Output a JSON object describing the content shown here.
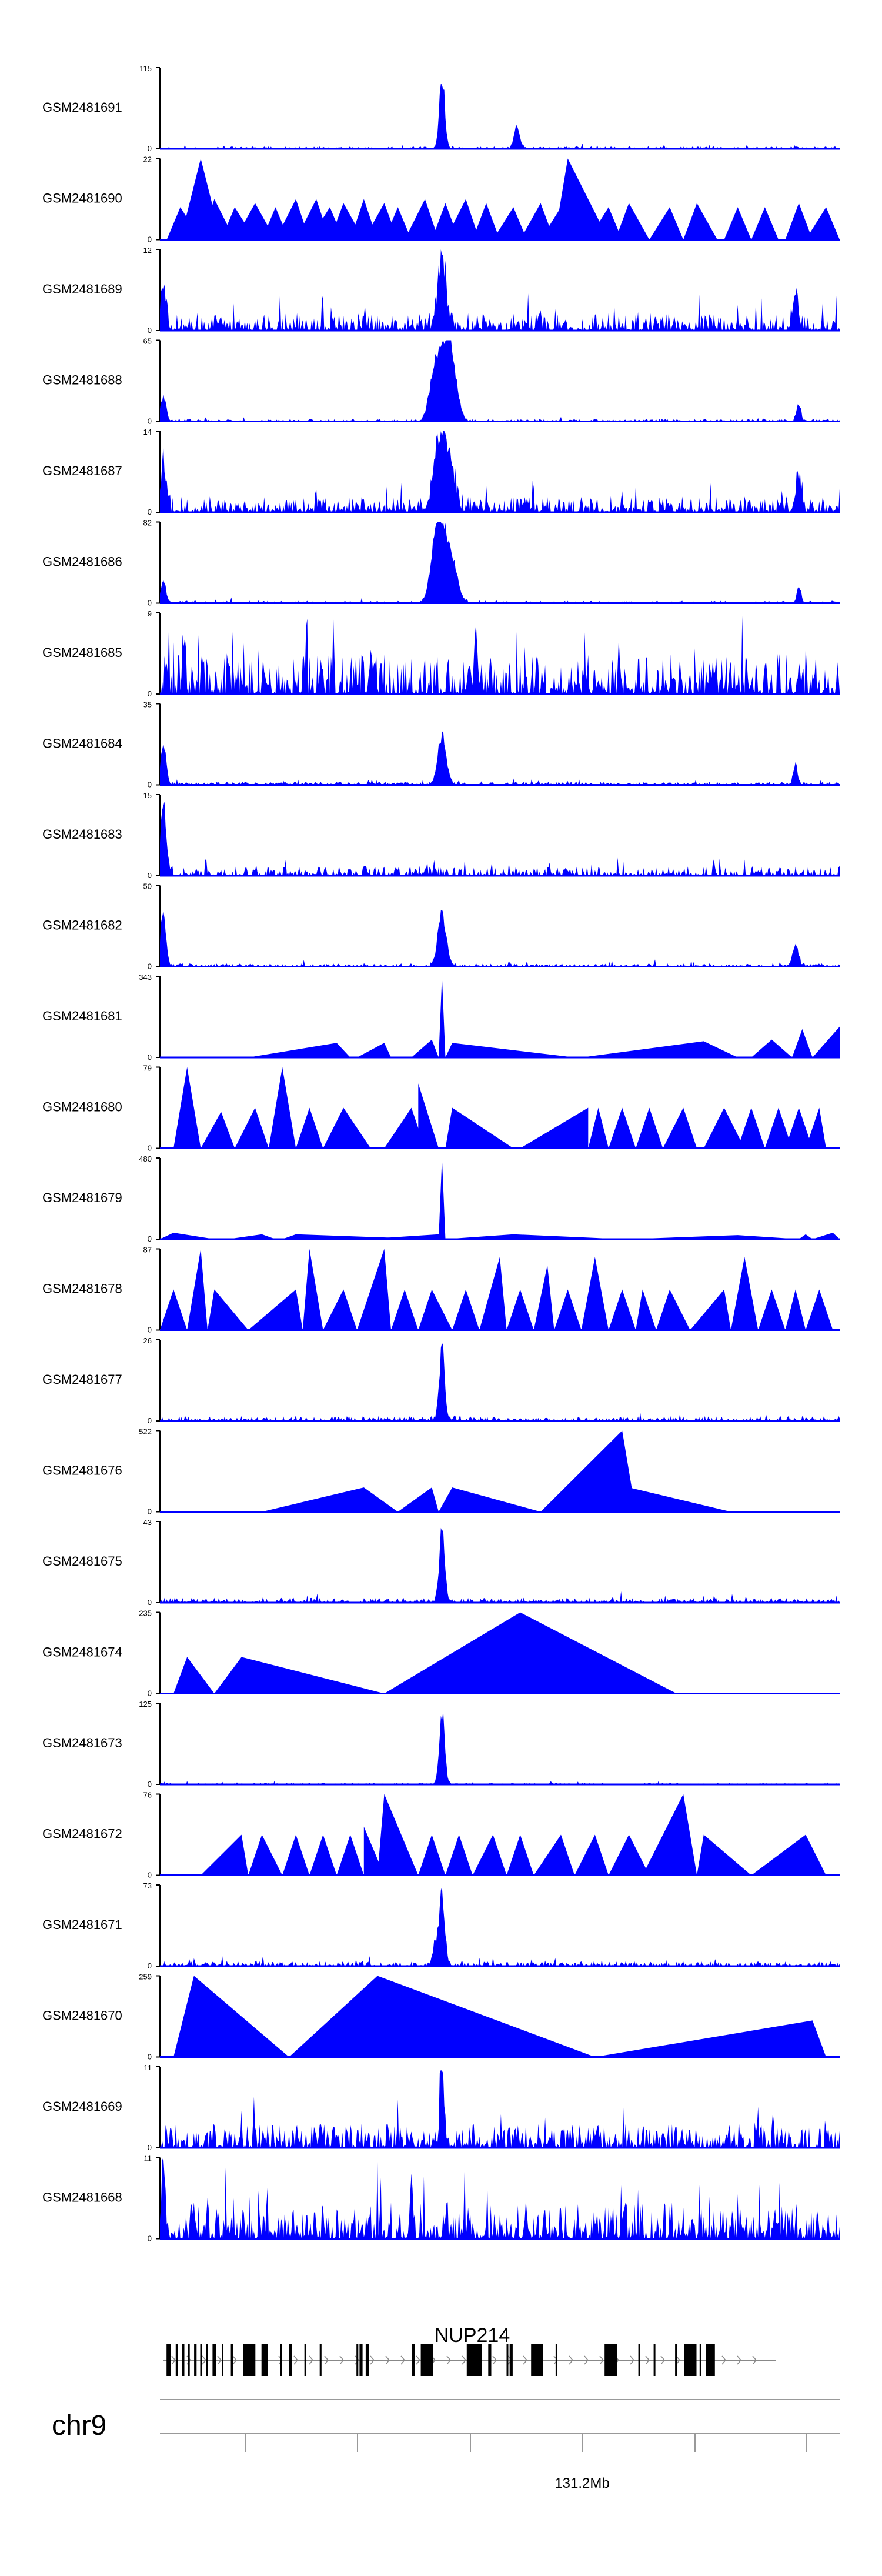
{
  "chromosome_label": "chr9",
  "gene_label": "NUP214",
  "genome_axis": {
    "tick_count": 6,
    "labeled_tick": "131.2Mb"
  },
  "colors": {
    "signal": "#0000ff",
    "axis": "#000000",
    "gene": "#000000"
  },
  "chart_data": {
    "type": "area",
    "title": "",
    "x_axis_label": "131.2Mb",
    "tracks": [
      {
        "name": "GSM2481691",
        "ymax": 115,
        "style": "dense",
        "noise": 0.03,
        "seed": 11,
        "peaks": [
          [
            0.415,
            1.0,
            0.004
          ],
          [
            0.525,
            0.32,
            0.004
          ]
        ]
      },
      {
        "name": "GSM2481690",
        "ymax": 22,
        "style": "sparse",
        "tris": [
          [
            0.01,
            0.06,
            0.03,
            0.4
          ],
          [
            0.03,
            0.09,
            0.06,
            1.0
          ],
          [
            0.06,
            0.11,
            0.08,
            0.5
          ],
          [
            0.09,
            0.14,
            0.11,
            0.4
          ],
          [
            0.11,
            0.17,
            0.14,
            0.45
          ],
          [
            0.15,
            0.19,
            0.17,
            0.4
          ],
          [
            0.17,
            0.22,
            0.2,
            0.5
          ],
          [
            0.2,
            0.25,
            0.23,
            0.5
          ],
          [
            0.22,
            0.27,
            0.25,
            0.4
          ],
          [
            0.25,
            0.3,
            0.27,
            0.45
          ],
          [
            0.28,
            0.32,
            0.3,
            0.5
          ],
          [
            0.3,
            0.35,
            0.33,
            0.45
          ],
          [
            0.33,
            0.37,
            0.35,
            0.4
          ],
          [
            0.36,
            0.41,
            0.39,
            0.5
          ],
          [
            0.4,
            0.44,
            0.42,
            0.45
          ],
          [
            0.42,
            0.47,
            0.45,
            0.5
          ],
          [
            0.46,
            0.5,
            0.48,
            0.45
          ],
          [
            0.49,
            0.54,
            0.52,
            0.4
          ],
          [
            0.53,
            0.58,
            0.56,
            0.45
          ],
          [
            0.56,
            0.62,
            0.59,
            0.4
          ],
          [
            0.58,
            0.66,
            0.6,
            1.0
          ],
          [
            0.63,
            0.68,
            0.66,
            0.4
          ],
          [
            0.67,
            0.72,
            0.69,
            0.45
          ],
          [
            0.72,
            0.77,
            0.75,
            0.4
          ],
          [
            0.77,
            0.82,
            0.79,
            0.45
          ],
          [
            0.83,
            0.87,
            0.85,
            0.4
          ],
          [
            0.87,
            0.91,
            0.89,
            0.4
          ],
          [
            0.92,
            0.96,
            0.94,
            0.45
          ],
          [
            0.95,
            1.0,
            0.98,
            0.4
          ]
        ]
      },
      {
        "name": "GSM2481689",
        "ymax": 12,
        "style": "dense",
        "noise": 0.22,
        "seed": 23,
        "peaks": [
          [
            0.415,
            1.0,
            0.006
          ],
          [
            0.005,
            0.6,
            0.004
          ],
          [
            0.935,
            0.5,
            0.004
          ]
        ]
      },
      {
        "name": "GSM2481688",
        "ymax": 65,
        "style": "dense",
        "noise": 0.03,
        "seed": 31,
        "peaks": [
          [
            0.405,
            0.7,
            0.008
          ],
          [
            0.42,
            0.85,
            0.008
          ],
          [
            0.43,
            0.6,
            0.008
          ],
          [
            0.005,
            0.35,
            0.004
          ],
          [
            0.94,
            0.25,
            0.003
          ]
        ]
      },
      {
        "name": "GSM2481687",
        "ymax": 14,
        "style": "dense",
        "noise": 0.2,
        "seed": 41,
        "peaks": [
          [
            0.41,
            0.85,
            0.008
          ],
          [
            0.425,
            0.7,
            0.008
          ],
          [
            0.005,
            0.6,
            0.004
          ],
          [
            0.94,
            0.45,
            0.004
          ]
        ]
      },
      {
        "name": "GSM2481686",
        "ymax": 82,
        "style": "dense",
        "noise": 0.03,
        "seed": 53,
        "peaks": [
          [
            0.405,
            0.65,
            0.008
          ],
          [
            0.415,
            0.8,
            0.008
          ],
          [
            0.43,
            0.55,
            0.008
          ],
          [
            0.005,
            0.3,
            0.004
          ],
          [
            0.94,
            0.25,
            0.003
          ]
        ]
      },
      {
        "name": "GSM2481685",
        "ymax": 9,
        "style": "dense",
        "noise": 0.5,
        "seed": 67,
        "peaks": [
          [
            0.465,
            0.95,
            0.002
          ],
          [
            0.035,
            0.6,
            0.002
          ]
        ]
      },
      {
        "name": "GSM2481684",
        "ymax": 35,
        "style": "dense",
        "noise": 0.04,
        "seed": 71,
        "peaks": [
          [
            0.415,
            0.7,
            0.006
          ],
          [
            0.005,
            0.55,
            0.004
          ],
          [
            0.935,
            0.3,
            0.003
          ]
        ]
      },
      {
        "name": "GSM2481683",
        "ymax": 15,
        "style": "dense",
        "noise": 0.12,
        "seed": 83,
        "peaks": [
          [
            0.005,
            0.95,
            0.004
          ]
        ]
      },
      {
        "name": "GSM2481682",
        "ymax": 50,
        "style": "dense",
        "noise": 0.04,
        "seed": 97,
        "peaks": [
          [
            0.415,
            0.75,
            0.006
          ],
          [
            0.005,
            0.8,
            0.004
          ],
          [
            0.935,
            0.3,
            0.004
          ]
        ]
      },
      {
        "name": "GSM2481681",
        "ymax": 343,
        "style": "sparse",
        "tris": [
          [
            0.13,
            0.28,
            0.26,
            0.18
          ],
          [
            0.29,
            0.34,
            0.33,
            0.18
          ],
          [
            0.37,
            0.41,
            0.4,
            0.22
          ],
          [
            0.41,
            0.42,
            0.415,
            1.0
          ],
          [
            0.42,
            0.61,
            0.43,
            0.18
          ],
          [
            0.62,
            0.85,
            0.8,
            0.2
          ],
          [
            0.87,
            0.93,
            0.9,
            0.22
          ],
          [
            0.93,
            0.96,
            0.945,
            0.35
          ],
          [
            0.96,
            1.0,
            1.0,
            0.38
          ]
        ]
      },
      {
        "name": "GSM2481680",
        "ymax": 79,
        "style": "sparse",
        "tris": [
          [
            0.02,
            0.06,
            0.04,
            1.0
          ],
          [
            0.06,
            0.11,
            0.09,
            0.45
          ],
          [
            0.11,
            0.16,
            0.14,
            0.5
          ],
          [
            0.16,
            0.2,
            0.18,
            1.0
          ],
          [
            0.2,
            0.24,
            0.22,
            0.5
          ],
          [
            0.24,
            0.31,
            0.27,
            0.5
          ],
          [
            0.33,
            0.39,
            0.37,
            0.5
          ],
          [
            0.38,
            0.41,
            0.38,
            0.8
          ],
          [
            0.42,
            0.52,
            0.43,
            0.5
          ],
          [
            0.53,
            0.63,
            0.63,
            0.5
          ],
          [
            0.63,
            0.66,
            0.645,
            0.5
          ],
          [
            0.66,
            0.7,
            0.68,
            0.5
          ],
          [
            0.7,
            0.74,
            0.72,
            0.5
          ],
          [
            0.74,
            0.79,
            0.77,
            0.5
          ],
          [
            0.8,
            0.86,
            0.83,
            0.5
          ],
          [
            0.85,
            0.89,
            0.87,
            0.5
          ],
          [
            0.89,
            0.93,
            0.91,
            0.5
          ],
          [
            0.92,
            0.96,
            0.94,
            0.5
          ],
          [
            0.95,
            0.98,
            0.97,
            0.5
          ]
        ]
      },
      {
        "name": "GSM2481679",
        "ymax": 480,
        "style": "sparse",
        "tris": [
          [
            0.0,
            0.08,
            0.02,
            0.08
          ],
          [
            0.1,
            0.17,
            0.15,
            0.06
          ],
          [
            0.18,
            0.4,
            0.2,
            0.06
          ],
          [
            0.3,
            0.41,
            0.41,
            0.06
          ],
          [
            0.41,
            0.42,
            0.415,
            1.0
          ],
          [
            0.42,
            0.68,
            0.52,
            0.06
          ],
          [
            0.69,
            0.94,
            0.85,
            0.05
          ],
          [
            0.94,
            0.96,
            0.95,
            0.06
          ],
          [
            0.96,
            1.0,
            0.99,
            0.08
          ]
        ]
      },
      {
        "name": "GSM2481678",
        "ymax": 87,
        "style": "sparse",
        "tris": [
          [
            0.0,
            0.04,
            0.02,
            0.5
          ],
          [
            0.04,
            0.07,
            0.06,
            1.0
          ],
          [
            0.07,
            0.13,
            0.08,
            0.5
          ],
          [
            0.13,
            0.21,
            0.2,
            0.5
          ],
          [
            0.21,
            0.24,
            0.22,
            1.0
          ],
          [
            0.24,
            0.29,
            0.27,
            0.5
          ],
          [
            0.29,
            0.34,
            0.33,
            1.0
          ],
          [
            0.34,
            0.38,
            0.36,
            0.5
          ],
          [
            0.38,
            0.43,
            0.4,
            0.5
          ],
          [
            0.43,
            0.47,
            0.45,
            0.5
          ],
          [
            0.47,
            0.51,
            0.5,
            0.9
          ],
          [
            0.51,
            0.55,
            0.53,
            0.5
          ],
          [
            0.55,
            0.58,
            0.57,
            0.8
          ],
          [
            0.58,
            0.62,
            0.6,
            0.5
          ],
          [
            0.62,
            0.66,
            0.64,
            0.9
          ],
          [
            0.66,
            0.7,
            0.68,
            0.5
          ],
          [
            0.7,
            0.73,
            0.71,
            0.5
          ],
          [
            0.73,
            0.78,
            0.75,
            0.5
          ],
          [
            0.78,
            0.84,
            0.83,
            0.5
          ],
          [
            0.84,
            0.88,
            0.86,
            0.9
          ],
          [
            0.88,
            0.92,
            0.9,
            0.5
          ],
          [
            0.92,
            0.95,
            0.935,
            0.5
          ],
          [
            0.95,
            0.99,
            0.97,
            0.5
          ]
        ]
      },
      {
        "name": "GSM2481677",
        "ymax": 26,
        "style": "dense",
        "noise": 0.06,
        "seed": 101,
        "peaks": [
          [
            0.415,
            1.0,
            0.004
          ]
        ]
      },
      {
        "name": "GSM2481676",
        "ymax": 522,
        "style": "sparse",
        "tris": [
          [
            0.15,
            0.35,
            0.3,
            0.3
          ],
          [
            0.35,
            0.41,
            0.4,
            0.3
          ],
          [
            0.41,
            0.56,
            0.43,
            0.3
          ],
          [
            0.56,
            0.7,
            0.68,
            1.0
          ],
          [
            0.69,
            0.84,
            0.69,
            0.3
          ]
        ]
      },
      {
        "name": "GSM2481675",
        "ymax": 43,
        "style": "dense",
        "noise": 0.06,
        "seed": 113,
        "peaks": [
          [
            0.415,
            1.0,
            0.004
          ]
        ]
      },
      {
        "name": "GSM2481674",
        "ymax": 235,
        "style": "sparse",
        "tris": [
          [
            0.02,
            0.08,
            0.04,
            0.45
          ],
          [
            0.08,
            0.33,
            0.12,
            0.45
          ],
          [
            0.33,
            0.76,
            0.53,
            1.0
          ]
        ]
      },
      {
        "name": "GSM2481673",
        "ymax": 125,
        "style": "dense",
        "noise": 0.02,
        "seed": 127,
        "peaks": [
          [
            0.415,
            1.0,
            0.004
          ]
        ]
      },
      {
        "name": "GSM2481672",
        "ymax": 76,
        "style": "sparse",
        "tris": [
          [
            0.06,
            0.13,
            0.12,
            0.5
          ],
          [
            0.13,
            0.18,
            0.15,
            0.5
          ],
          [
            0.18,
            0.22,
            0.2,
            0.5
          ],
          [
            0.22,
            0.26,
            0.24,
            0.5
          ],
          [
            0.26,
            0.3,
            0.28,
            0.5
          ],
          [
            0.3,
            0.33,
            0.3,
            0.6
          ],
          [
            0.32,
            0.38,
            0.33,
            1.0
          ],
          [
            0.38,
            0.42,
            0.4,
            0.5
          ],
          [
            0.42,
            0.46,
            0.44,
            0.5
          ],
          [
            0.46,
            0.51,
            0.49,
            0.5
          ],
          [
            0.51,
            0.55,
            0.53,
            0.5
          ],
          [
            0.55,
            0.61,
            0.59,
            0.5
          ],
          [
            0.61,
            0.66,
            0.64,
            0.5
          ],
          [
            0.66,
            0.72,
            0.69,
            0.5
          ],
          [
            0.71,
            0.79,
            0.77,
            1.0
          ],
          [
            0.79,
            0.87,
            0.8,
            0.5
          ],
          [
            0.87,
            0.98,
            0.95,
            0.5
          ]
        ]
      },
      {
        "name": "GSM2481671",
        "ymax": 73,
        "style": "dense",
        "noise": 0.06,
        "seed": 139,
        "peaks": [
          [
            0.415,
            1.0,
            0.004
          ],
          [
            0.405,
            0.3,
            0.004
          ]
        ]
      },
      {
        "name": "GSM2481670",
        "ymax": 259,
        "style": "sparse",
        "tris": [
          [
            0.02,
            0.19,
            0.05,
            1.0
          ],
          [
            0.19,
            0.64,
            0.32,
            1.0
          ],
          [
            0.64,
            0.98,
            0.96,
            0.45
          ]
        ]
      },
      {
        "name": "GSM2481669",
        "ymax": 11,
        "style": "dense",
        "noise": 0.3,
        "seed": 149,
        "peaks": [
          [
            0.415,
            1.0,
            0.003
          ]
        ]
      },
      {
        "name": "GSM2481668",
        "ymax": 11,
        "style": "dense",
        "noise": 0.45,
        "seed": 157,
        "peaks": [
          [
            0.37,
            1.0,
            0.002
          ],
          [
            0.005,
            0.9,
            0.003
          ]
        ]
      }
    ],
    "gene": {
      "name": "NUP214",
      "exons": [
        [
          0.005,
          0.012
        ],
        [
          0.02,
          0.024
        ],
        [
          0.03,
          0.034
        ],
        [
          0.04,
          0.042
        ],
        [
          0.05,
          0.054
        ],
        [
          0.06,
          0.063
        ],
        [
          0.07,
          0.072
        ],
        [
          0.08,
          0.086
        ],
        [
          0.095,
          0.097
        ],
        [
          0.11,
          0.114
        ],
        [
          0.13,
          0.15
        ],
        [
          0.16,
          0.17
        ],
        [
          0.19,
          0.192
        ],
        [
          0.205,
          0.21
        ],
        [
          0.23,
          0.232
        ],
        [
          0.255,
          0.258
        ],
        [
          0.315,
          0.318
        ],
        [
          0.32,
          0.325
        ],
        [
          0.33,
          0.335
        ],
        [
          0.405,
          0.41
        ],
        [
          0.42,
          0.44
        ],
        [
          0.495,
          0.505
        ],
        [
          0.5,
          0.52
        ],
        [
          0.53,
          0.535
        ],
        [
          0.56,
          0.562
        ],
        [
          0.565,
          0.57
        ],
        [
          0.6,
          0.62
        ],
        [
          0.64,
          0.642
        ],
        [
          0.72,
          0.74
        ],
        [
          0.775,
          0.777
        ],
        [
          0.8,
          0.802
        ],
        [
          0.835,
          0.837
        ],
        [
          0.85,
          0.87
        ],
        [
          0.875,
          0.877
        ],
        [
          0.885,
          0.9
        ]
      ]
    }
  }
}
